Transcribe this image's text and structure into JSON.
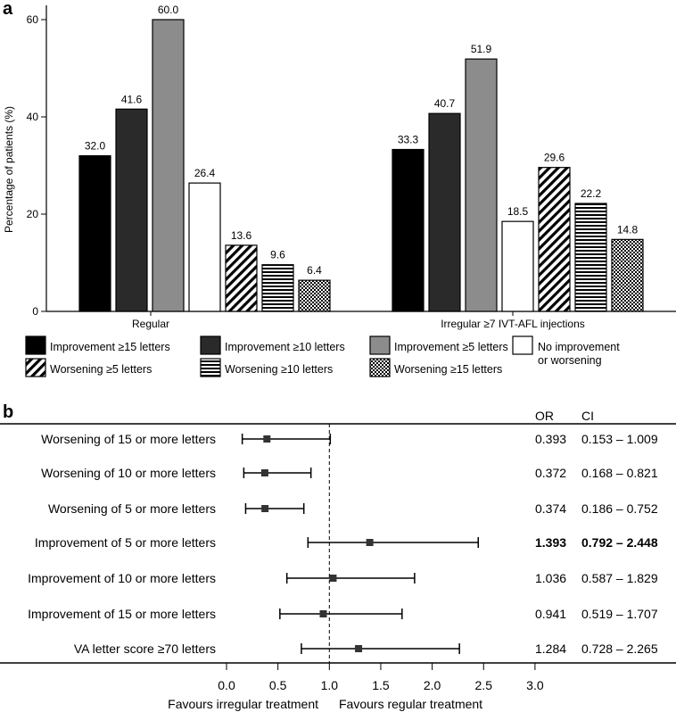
{
  "colors": {
    "black": "#000000",
    "dark": "#2a2a2a",
    "gray": "#8c8c8c",
    "white": "#ffffff"
  },
  "chart_data": [
    {
      "panel_label": "a",
      "type": "bar",
      "ylabel": "Percentage of patients (%)",
      "ylim": [
        0,
        65
      ],
      "yticks": [
        0,
        20,
        40,
        60
      ],
      "grid": false,
      "categories": [
        "Regular",
        "Irregular ≥7 IVT-AFL injections"
      ],
      "series": [
        {
          "name": "Improvement ≥15 letters",
          "fill": "black",
          "values": [
            32.0,
            33.3
          ],
          "labels": [
            "32.0",
            "33.3"
          ]
        },
        {
          "name": "Improvement ≥10 letters",
          "fill": "dark",
          "values": [
            41.6,
            40.7
          ],
          "labels": [
            "41.6",
            "40.7"
          ]
        },
        {
          "name": "Improvement ≥5 letters",
          "fill": "gray",
          "values": [
            60.0,
            51.9
          ],
          "labels": [
            "60.0",
            "51.9"
          ]
        },
        {
          "name": "No improvement or worsening",
          "name_lines": [
            "No improvement",
            "or worsening"
          ],
          "fill": "white",
          "values": [
            26.4,
            18.5
          ],
          "labels": [
            "26.4",
            "18.5"
          ]
        },
        {
          "name": "Worsening ≥5 letters",
          "fill": "diag",
          "values": [
            13.6,
            29.6
          ],
          "labels": [
            "13.6",
            "29.6"
          ]
        },
        {
          "name": "Worsening ≥10 letters",
          "fill": "hlines",
          "values": [
            9.6,
            22.2
          ],
          "labels": [
            "9.6",
            "22.2"
          ]
        },
        {
          "name": "Worsening ≥15 letters",
          "fill": "cross",
          "values": [
            6.4,
            14.8
          ],
          "labels": [
            "6.4",
            "14.8"
          ]
        }
      ],
      "legend_placement": "bottom"
    },
    {
      "panel_label": "b",
      "type": "forest",
      "header_or": "OR",
      "header_ci": "CI",
      "xlim": [
        0.0,
        3.0
      ],
      "xticks": [
        "0.0",
        "0.5",
        "1.0",
        "1.5",
        "2.0",
        "2.5",
        "3.0"
      ],
      "reference_line": 1.0,
      "xlabel_left": "Favours irregular treatment",
      "xlabel_right": "Favours regular treatment",
      "rows": [
        {
          "label": "Worsening of 15 or more letters",
          "or": 0.393,
          "ci_low": 0.153,
          "ci_high": 1.009,
          "or_text": "0.393",
          "ci_text": "0.153 – 1.009",
          "bold": false
        },
        {
          "label": "Worsening of 10 or more letters",
          "or": 0.372,
          "ci_low": 0.168,
          "ci_high": 0.821,
          "or_text": "0.372",
          "ci_text": "0.168 – 0.821",
          "bold": false
        },
        {
          "label": "Worsening of 5 or more letters",
          "or": 0.374,
          "ci_low": 0.186,
          "ci_high": 0.752,
          "or_text": "0.374",
          "ci_text": "0.186 – 0.752",
          "bold": false
        },
        {
          "label": "Improvement of 5 or more letters",
          "or": 1.393,
          "ci_low": 0.792,
          "ci_high": 2.448,
          "or_text": "1.393",
          "ci_text": "0.792 – 2.448",
          "bold": true
        },
        {
          "label": "Improvement of 10 or more letters",
          "or": 1.036,
          "ci_low": 0.587,
          "ci_high": 1.829,
          "or_text": "1.036",
          "ci_text": "0.587 – 1.829",
          "bold": false
        },
        {
          "label": "Improvement of 15 or more letters",
          "or": 0.941,
          "ci_low": 0.519,
          "ci_high": 1.707,
          "or_text": "0.941",
          "ci_text": "0.519 – 1.707",
          "bold": false
        },
        {
          "label": "VA letter score ≥70 letters",
          "or": 1.284,
          "ci_low": 0.728,
          "ci_high": 2.265,
          "or_text": "1.284",
          "ci_text": "0.728 – 2.265",
          "bold": false
        }
      ]
    }
  ]
}
